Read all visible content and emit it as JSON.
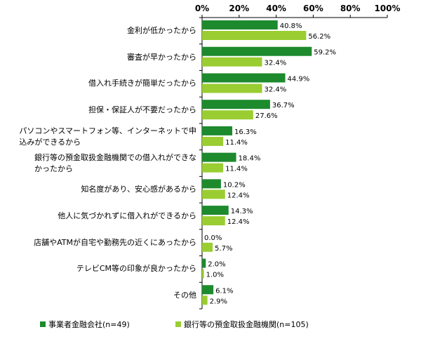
{
  "chart_data": {
    "type": "bar",
    "orientation": "horizontal",
    "categories": [
      [
        "金利が低かったから"
      ],
      [
        "審査が早かったから"
      ],
      [
        "借入れ手続きが簡単だったから"
      ],
      [
        "担保・保証人が不要だったから"
      ],
      [
        "パソコンやスマートフォン等、インターネットで申",
        "込みができるから"
      ],
      [
        "銀行等の預金取扱金融機関での借入れができな",
        "かったから"
      ],
      [
        "知名度があり、安心感があるから"
      ],
      [
        "他人に気づかれずに借入れができるから"
      ],
      [
        "店舗やATMが自宅や勤務先の近くにあったから"
      ],
      [
        "テレビCM等の印象が良かったから"
      ],
      [
        "その他"
      ]
    ],
    "series": [
      {
        "name": "事業者金融会社(n=49)",
        "color": "#1e8a2e",
        "values": [
          40.8,
          59.2,
          44.9,
          36.7,
          16.3,
          18.4,
          10.2,
          14.3,
          0.0,
          2.0,
          6.1
        ]
      },
      {
        "name": "銀行等の預金取扱金融機関(n=105)",
        "color": "#9acd32",
        "values": [
          56.2,
          32.4,
          32.4,
          27.6,
          11.4,
          11.4,
          12.4,
          12.4,
          5.7,
          1.0,
          2.9
        ]
      }
    ],
    "value_labels": [
      [
        "40.8%",
        "59.2%",
        "44.9%",
        "36.7%",
        "16.3%",
        "18.4%",
        "10.2%",
        "14.3%",
        "0.0%",
        "2.0%",
        "6.1%"
      ],
      [
        "56.2%",
        "32.4%",
        "32.4%",
        "27.6%",
        "11.4%",
        "11.4%",
        "12.4%",
        "12.4%",
        "5.7%",
        "1.0%",
        "2.9%"
      ]
    ],
    "xlim": [
      0,
      100
    ],
    "xticks": [
      "0%",
      "20%",
      "40%",
      "60%",
      "80%",
      "100%"
    ],
    "legend_position": "bottom",
    "grid": false
  }
}
